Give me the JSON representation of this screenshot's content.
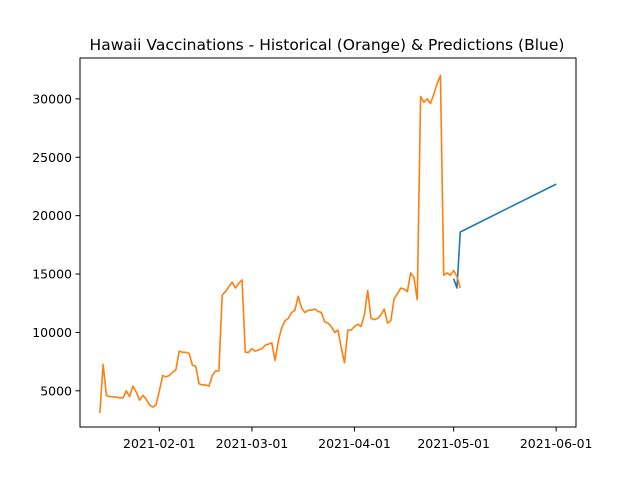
{
  "chart_data": {
    "type": "line",
    "title": "Hawaii Vaccinations - Historical (Orange) & Predictions (Blue)",
    "xlabel": "",
    "ylabel": "",
    "x_axis_type": "date",
    "xlim": [
      "2021-01-08",
      "2021-06-07"
    ],
    "ylim": [
      1900,
      33500
    ],
    "x_ticks": [
      "2021-02-01",
      "2021-03-01",
      "2021-04-01",
      "2021-05-01",
      "2021-06-01"
    ],
    "y_ticks": [
      5000,
      10000,
      15000,
      20000,
      25000,
      30000
    ],
    "grid": false,
    "legend": "none",
    "colors": {
      "historical": "#ff7f0e",
      "prediction": "#1f77b4"
    },
    "series": [
      {
        "role": "prediction",
        "color": "#1f77b4",
        "points": [
          [
            "2021-05-01",
            14600
          ],
          [
            "2021-05-02",
            13800
          ],
          [
            "2021-05-03",
            18600
          ],
          [
            "2021-06-01",
            22700
          ]
        ]
      },
      {
        "role": "historical",
        "color": "#ff7f0e",
        "points": [
          [
            "2021-01-14",
            3100
          ],
          [
            "2021-01-15",
            7250
          ],
          [
            "2021-01-16",
            4600
          ],
          [
            "2021-01-17",
            4500
          ],
          [
            "2021-01-19",
            4450
          ],
          [
            "2021-01-20",
            4400
          ],
          [
            "2021-01-21",
            4400
          ],
          [
            "2021-01-22",
            5000
          ],
          [
            "2021-01-23",
            4500
          ],
          [
            "2021-01-24",
            5400
          ],
          [
            "2021-01-25",
            4900
          ],
          [
            "2021-01-26",
            4200
          ],
          [
            "2021-01-27",
            4600
          ],
          [
            "2021-01-28",
            4300
          ],
          [
            "2021-01-29",
            3800
          ],
          [
            "2021-01-30",
            3600
          ],
          [
            "2021-01-31",
            3800
          ],
          [
            "2021-02-01",
            5000
          ],
          [
            "2021-02-02",
            6300
          ],
          [
            "2021-02-03",
            6200
          ],
          [
            "2021-02-04",
            6300
          ],
          [
            "2021-02-05",
            6600
          ],
          [
            "2021-02-06",
            6800
          ],
          [
            "2021-02-07",
            8400
          ],
          [
            "2021-02-08",
            8300
          ],
          [
            "2021-02-09",
            8300
          ],
          [
            "2021-02-10",
            8200
          ],
          [
            "2021-02-11",
            7200
          ],
          [
            "2021-02-12",
            7100
          ],
          [
            "2021-02-13",
            5600
          ],
          [
            "2021-02-14",
            5500
          ],
          [
            "2021-02-15",
            5500
          ],
          [
            "2021-02-16",
            5400
          ],
          [
            "2021-02-17",
            6300
          ],
          [
            "2021-02-18",
            6700
          ],
          [
            "2021-02-19",
            6700
          ],
          [
            "2021-02-20",
            13200
          ],
          [
            "2021-02-21",
            13500
          ],
          [
            "2021-02-22",
            13900
          ],
          [
            "2021-02-23",
            14300
          ],
          [
            "2021-02-24",
            13800
          ],
          [
            "2021-02-25",
            14200
          ],
          [
            "2021-02-26",
            14500
          ],
          [
            "2021-02-27",
            8300
          ],
          [
            "2021-02-28",
            8300
          ],
          [
            "2021-03-01",
            8600
          ],
          [
            "2021-03-02",
            8400
          ],
          [
            "2021-03-03",
            8500
          ],
          [
            "2021-03-04",
            8600
          ],
          [
            "2021-03-05",
            8900
          ],
          [
            "2021-03-06",
            9000
          ],
          [
            "2021-03-07",
            9100
          ],
          [
            "2021-03-08",
            7600
          ],
          [
            "2021-03-09",
            9300
          ],
          [
            "2021-03-10",
            10400
          ],
          [
            "2021-03-11",
            11000
          ],
          [
            "2021-03-12",
            11200
          ],
          [
            "2021-03-13",
            11700
          ],
          [
            "2021-03-14",
            11900
          ],
          [
            "2021-03-15",
            13100
          ],
          [
            "2021-03-16",
            12100
          ],
          [
            "2021-03-17",
            11700
          ],
          [
            "2021-03-18",
            11900
          ],
          [
            "2021-03-19",
            11900
          ],
          [
            "2021-03-20",
            12000
          ],
          [
            "2021-03-21",
            11800
          ],
          [
            "2021-03-22",
            11700
          ],
          [
            "2021-03-23",
            10900
          ],
          [
            "2021-03-24",
            10800
          ],
          [
            "2021-03-25",
            10500
          ],
          [
            "2021-03-26",
            10000
          ],
          [
            "2021-03-27",
            10200
          ],
          [
            "2021-03-28",
            8700
          ],
          [
            "2021-03-29",
            7400
          ],
          [
            "2021-03-30",
            10200
          ],
          [
            "2021-03-31",
            10200
          ],
          [
            "2021-04-01",
            10500
          ],
          [
            "2021-04-02",
            10700
          ],
          [
            "2021-04-03",
            10500
          ],
          [
            "2021-04-04",
            11500
          ],
          [
            "2021-04-05",
            13600
          ],
          [
            "2021-04-06",
            11200
          ],
          [
            "2021-04-07",
            11100
          ],
          [
            "2021-04-08",
            11200
          ],
          [
            "2021-04-09",
            11500
          ],
          [
            "2021-04-10",
            12000
          ],
          [
            "2021-04-11",
            10800
          ],
          [
            "2021-04-12",
            11000
          ],
          [
            "2021-04-13",
            12900
          ],
          [
            "2021-04-14",
            13300
          ],
          [
            "2021-04-15",
            13800
          ],
          [
            "2021-04-16",
            13700
          ],
          [
            "2021-04-17",
            13500
          ],
          [
            "2021-04-18",
            15100
          ],
          [
            "2021-04-19",
            14700
          ],
          [
            "2021-04-20",
            12800
          ],
          [
            "2021-04-21",
            30200
          ],
          [
            "2021-04-22",
            29700
          ],
          [
            "2021-04-23",
            30000
          ],
          [
            "2021-04-24",
            29600
          ],
          [
            "2021-04-25",
            30400
          ],
          [
            "2021-04-26",
            31300
          ],
          [
            "2021-04-27",
            32000
          ],
          [
            "2021-04-28",
            14900
          ],
          [
            "2021-04-29",
            15100
          ],
          [
            "2021-04-30",
            14900
          ],
          [
            "2021-05-01",
            15300
          ],
          [
            "2021-05-02",
            14800
          ],
          [
            "2021-05-03",
            13800
          ]
        ]
      }
    ]
  }
}
